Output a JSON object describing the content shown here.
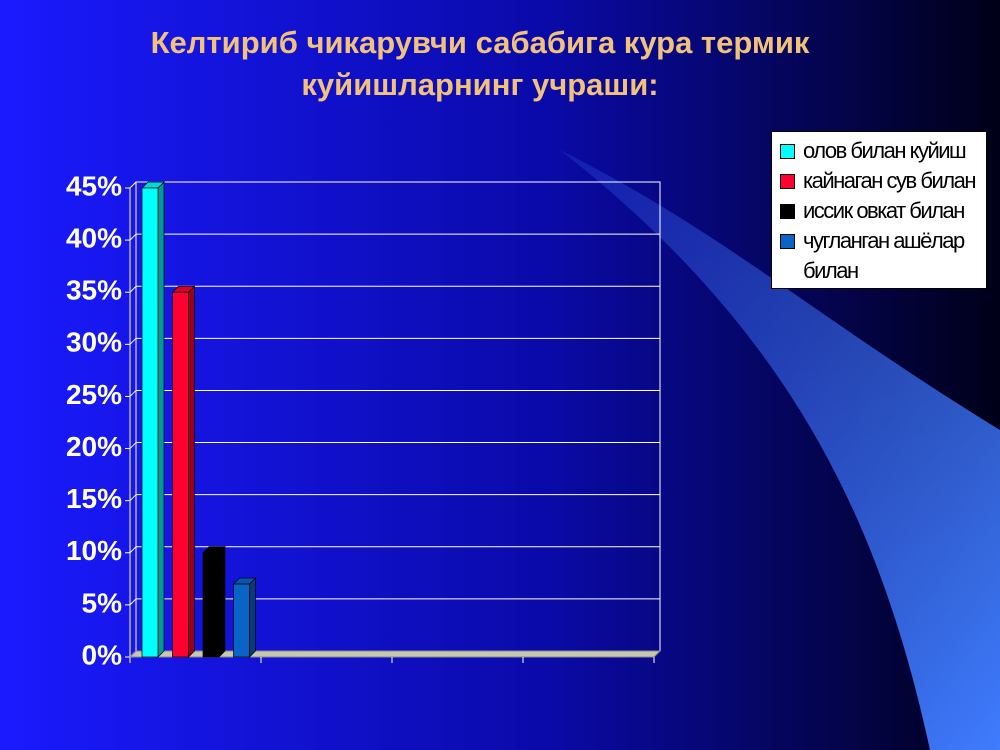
{
  "chart_data": {
    "type": "bar",
    "title": "Келтириб чикарувчи сабабига кура термик куйишларнинг учраши:",
    "categories": [
      null,
      null,
      null,
      null
    ],
    "series": [
      {
        "name": "олов билан куйиш",
        "color": "#00ffff",
        "values": [
          45,
          null,
          null,
          null
        ]
      },
      {
        "name": "кайнаган сув билан",
        "color": "#ff0033",
        "values": [
          35,
          null,
          null,
          null
        ]
      },
      {
        "name": "иссик овкат билан",
        "color": "#000000",
        "values": [
          10,
          null,
          null,
          null
        ]
      },
      {
        "name": "чугланган ашёлар билан",
        "color": "#0a64c8",
        "values": [
          7,
          null,
          null,
          null
        ]
      }
    ],
    "ylim": [
      0,
      45
    ],
    "yticks": [
      {
        "value": 0,
        "label": "0%"
      },
      {
        "value": 5,
        "label": "5%"
      },
      {
        "value": 10,
        "label": "10%"
      },
      {
        "value": 15,
        "label": "15%"
      },
      {
        "value": 20,
        "label": "20%"
      },
      {
        "value": 25,
        "label": "25%"
      },
      {
        "value": 30,
        "label": "30%"
      },
      {
        "value": 35,
        "label": "35%"
      },
      {
        "value": 40,
        "label": "40%"
      },
      {
        "value": 45,
        "label": "45%"
      }
    ],
    "grid": true
  }
}
